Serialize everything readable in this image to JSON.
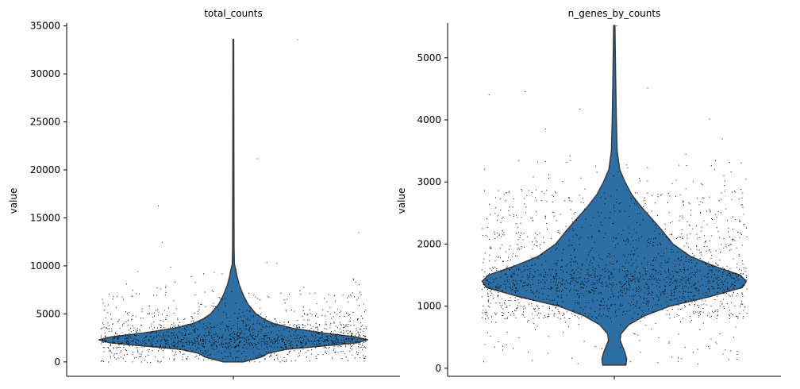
{
  "chart_data": [
    {
      "type": "violin",
      "title": "total_counts",
      "ylabel": "value",
      "xlabel": "",
      "ylim": [
        -1500,
        35300
      ],
      "yticks": [
        0,
        5000,
        10000,
        15000,
        20000,
        25000,
        30000,
        35000
      ],
      "color": "#2d6fa5",
      "grid": false,
      "approx_stats": {
        "min": 0,
        "peak_density": 2300,
        "max": 33600
      },
      "density_profile": [
        {
          "y": 0,
          "halfwidth": 0.28
        },
        {
          "y": 200,
          "halfwidth": 0.5
        },
        {
          "y": 500,
          "halfwidth": 0.8
        },
        {
          "y": 900,
          "halfwidth": 1.0
        },
        {
          "y": 1300,
          "halfwidth": 1.5
        },
        {
          "y": 1700,
          "halfwidth": 2.7
        },
        {
          "y": 2000,
          "halfwidth": 3.55
        },
        {
          "y": 2300,
          "halfwidth": 3.85
        },
        {
          "y": 2600,
          "halfwidth": 3.5
        },
        {
          "y": 3000,
          "halfwidth": 2.6
        },
        {
          "y": 3500,
          "halfwidth": 1.7
        },
        {
          "y": 4000,
          "halfwidth": 1.15
        },
        {
          "y": 4500,
          "halfwidth": 0.85
        },
        {
          "y": 5000,
          "halfwidth": 0.65
        },
        {
          "y": 6000,
          "halfwidth": 0.42
        },
        {
          "y": 7000,
          "halfwidth": 0.28
        },
        {
          "y": 8000,
          "halfwidth": 0.17
        },
        {
          "y": 9000,
          "halfwidth": 0.1
        },
        {
          "y": 9600,
          "halfwidth": 0.07
        },
        {
          "y": 10200,
          "halfwidth": 0.03
        },
        {
          "y": 12000,
          "halfwidth": 0.02
        },
        {
          "y": 20000,
          "halfwidth": 0.015
        },
        {
          "y": 33600,
          "halfwidth": 0.01
        }
      ],
      "point_distribution": [
        {
          "from": 0,
          "to": 1500,
          "count": 240
        },
        {
          "from": 1500,
          "to": 2800,
          "count": 700
        },
        {
          "from": 2800,
          "to": 4000,
          "count": 330
        },
        {
          "from": 4000,
          "to": 5500,
          "count": 170
        },
        {
          "from": 5500,
          "to": 7500,
          "count": 90
        },
        {
          "from": 7500,
          "to": 10500,
          "count": 20
        }
      ],
      "outliers": [
        12500,
        13500,
        16300,
        21200,
        33600
      ]
    },
    {
      "type": "violin",
      "title": "n_genes_by_counts",
      "ylabel": "value",
      "xlabel": "",
      "ylim": [
        -130,
        5560
      ],
      "yticks": [
        0,
        1000,
        2000,
        3000,
        4000,
        5000
      ],
      "color": "#2d6fa5",
      "grid": false,
      "approx_stats": {
        "min": 50,
        "peak_density": 1400,
        "max": 5520
      },
      "density_profile": [
        {
          "y": 50,
          "halfwidth": 0.28
        },
        {
          "y": 150,
          "halfwidth": 0.3
        },
        {
          "y": 250,
          "halfwidth": 0.26
        },
        {
          "y": 350,
          "halfwidth": 0.2
        },
        {
          "y": 450,
          "halfwidth": 0.14
        },
        {
          "y": 550,
          "halfwidth": 0.16
        },
        {
          "y": 700,
          "halfwidth": 0.35
        },
        {
          "y": 850,
          "halfwidth": 0.75
        },
        {
          "y": 1000,
          "halfwidth": 1.35
        },
        {
          "y": 1150,
          "halfwidth": 2.3
        },
        {
          "y": 1300,
          "halfwidth": 3.1
        },
        {
          "y": 1400,
          "halfwidth": 3.2
        },
        {
          "y": 1500,
          "halfwidth": 3.05
        },
        {
          "y": 1650,
          "halfwidth": 2.4
        },
        {
          "y": 1800,
          "halfwidth": 1.85
        },
        {
          "y": 2000,
          "halfwidth": 1.42
        },
        {
          "y": 2200,
          "halfwidth": 1.18
        },
        {
          "y": 2400,
          "halfwidth": 0.92
        },
        {
          "y": 2600,
          "halfwidth": 0.65
        },
        {
          "y": 2800,
          "halfwidth": 0.42
        },
        {
          "y": 3000,
          "halfwidth": 0.26
        },
        {
          "y": 3200,
          "halfwidth": 0.13
        },
        {
          "y": 3500,
          "halfwidth": 0.07
        },
        {
          "y": 4000,
          "halfwidth": 0.05
        },
        {
          "y": 4600,
          "halfwidth": 0.035
        },
        {
          "y": 5520,
          "halfwidth": 0.015
        }
      ],
      "point_distribution": [
        {
          "from": 50,
          "to": 800,
          "count": 80
        },
        {
          "from": 800,
          "to": 1200,
          "count": 420
        },
        {
          "from": 1200,
          "to": 1600,
          "count": 760
        },
        {
          "from": 1600,
          "to": 2200,
          "count": 420
        },
        {
          "from": 2200,
          "to": 2900,
          "count": 250
        },
        {
          "from": 2900,
          "to": 3500,
          "count": 40
        }
      ],
      "outliers": [
        3700,
        3860,
        4020,
        4180,
        4410,
        4460,
        4520,
        5520
      ]
    }
  ]
}
